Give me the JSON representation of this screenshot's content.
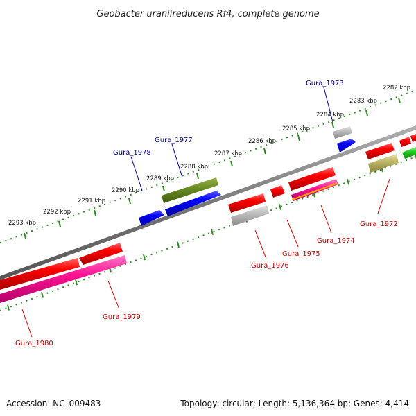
{
  "title": "Geobacter uraniireducens Rf4, complete genome",
  "footer": {
    "accession": "Accession: NC_009483",
    "stats": "Topology: circular; Length: 5,136,364 bp; Genes: 4,414"
  },
  "colors": {
    "backbone": "#808080",
    "ticks": "#2e8b22",
    "label_upper": "#00008b",
    "label_lower": "#cc0000"
  },
  "kbp_labels": [
    "2282 kbp",
    "2283 kbp",
    "2284 kbp",
    "2285 kbp",
    "2286 kbp",
    "2287 kbp",
    "2288 kbp",
    "2289 kbp",
    "2290 kbp",
    "2291 kbp",
    "2292 kbp",
    "2293 kbp"
  ],
  "gene_labels": [
    {
      "text": "Gura_1973",
      "side": "upper"
    },
    {
      "text": "Gura_1977",
      "side": "upper"
    },
    {
      "text": "Gura_1978",
      "side": "upper"
    },
    {
      "text": "Gura_1972",
      "side": "lower"
    },
    {
      "text": "Gura_1974",
      "side": "lower"
    },
    {
      "text": "Gura_1975",
      "side": "lower"
    },
    {
      "text": "Gura_1976",
      "side": "lower"
    },
    {
      "text": "Gura_1979",
      "side": "lower"
    },
    {
      "text": "Gura_1980",
      "side": "lower"
    }
  ]
}
